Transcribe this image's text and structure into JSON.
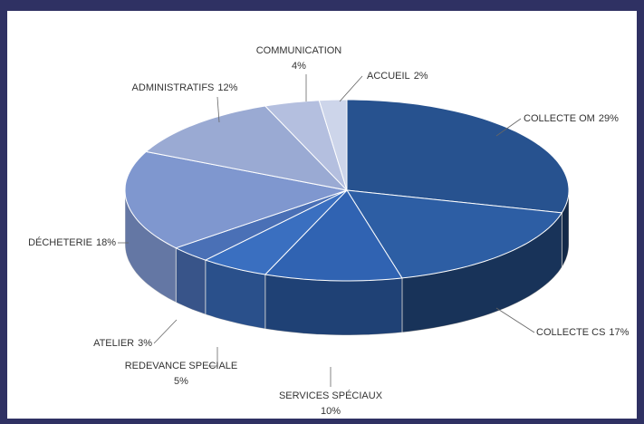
{
  "chart_data": {
    "type": "pie",
    "categories": [
      "COLLECTE OM",
      "COLLECTE CS",
      "SERVICES SPÉCIAUX",
      "REDEVANCE SPECIALE",
      "ATELIER",
      "DÉCHETERIE",
      "ADMINISTRATIFS",
      "COMMUNICATION",
      "ACCUEIL"
    ],
    "values": [
      29,
      17,
      10,
      5,
      3,
      18,
      12,
      4,
      2
    ],
    "value_labels": [
      "29%",
      "17%",
      "10%",
      "5%",
      "3%",
      "18%",
      "12%",
      "4%",
      "2%"
    ],
    "colors": [
      "#27528f",
      "#2d5ea4",
      "#3063b2",
      "#3a6fc0",
      "#4a70b6",
      "#7f97cf",
      "#9aaad3",
      "#b4bfdf",
      "#cdd5ea"
    ]
  }
}
